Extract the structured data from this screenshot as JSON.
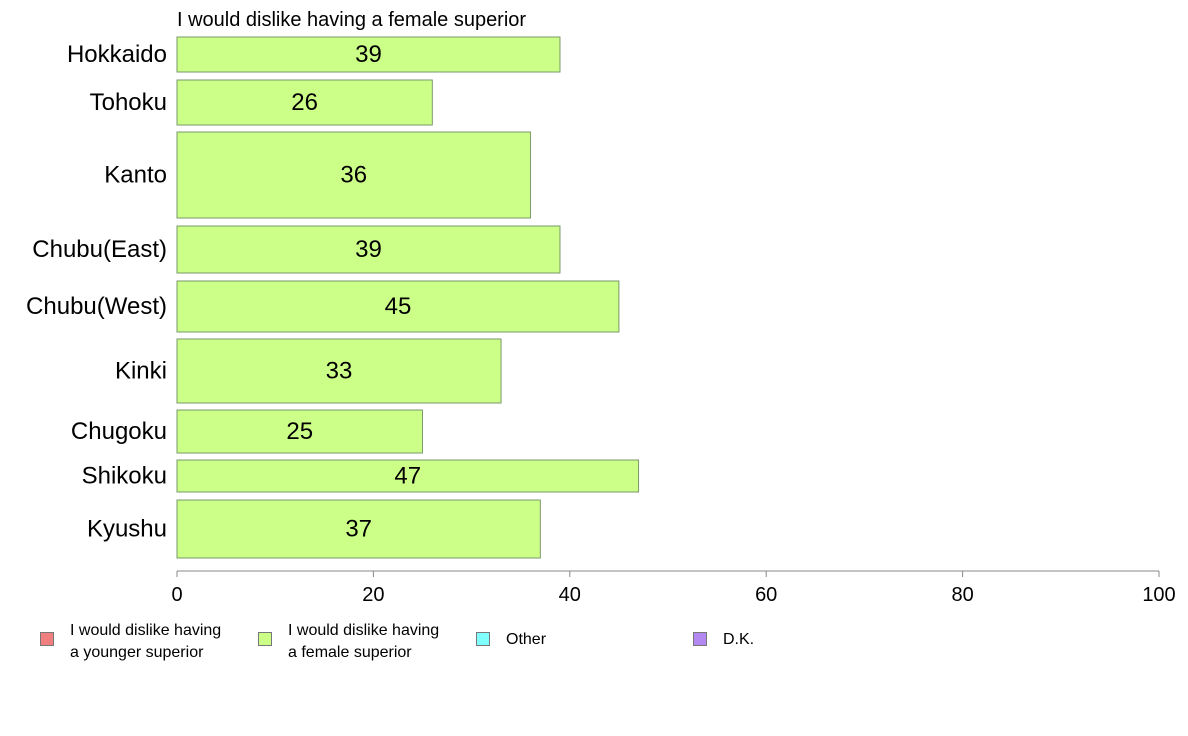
{
  "chart_data": {
    "type": "bar",
    "orientation": "horizontal",
    "title": "I would dislike having a female superior",
    "categories": [
      "Hokkaido",
      "Tohoku",
      "Kanto",
      "Chubu(East)",
      "Chubu(West)",
      "Kinki",
      "Chugoku",
      "Shikoku",
      "Kyushu"
    ],
    "values": [
      39,
      26,
      36,
      39,
      45,
      33,
      25,
      47,
      37
    ],
    "value_labels": [
      "39",
      "26",
      "36",
      "39",
      "45",
      "33",
      "25",
      "47",
      "37"
    ],
    "bar_color": "#ccff88",
    "xlim": [
      0,
      100
    ],
    "xticks": [
      0,
      20,
      40,
      60,
      80,
      100
    ],
    "grid": false,
    "legend_position": "bottom",
    "legend": [
      {
        "label": "I would dislike having\na younger superior",
        "color": "#f08080"
      },
      {
        "label": "I would dislike having\na female superior",
        "color": "#ccff88"
      },
      {
        "label": "Other",
        "color": "#80ffff"
      },
      {
        "label": "D.K.",
        "color": "#b388f0"
      }
    ]
  }
}
